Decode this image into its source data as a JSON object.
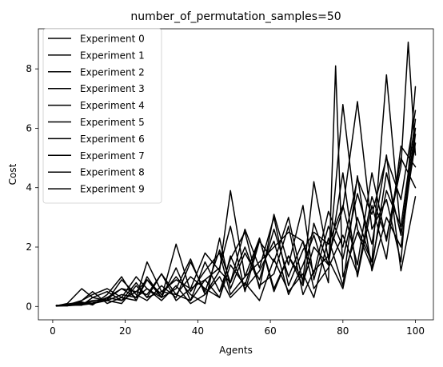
{
  "chart_data": {
    "type": "line",
    "title": "number_of_permutation_samples=50",
    "xlabel": "Agents",
    "ylabel": "Cost",
    "xlim": [
      -3.95,
      104.95
    ],
    "ylim": [
      -0.45,
      9.35
    ],
    "xticks": [
      0,
      20,
      40,
      60,
      80,
      100
    ],
    "yticks": [
      0,
      2,
      4,
      6,
      8
    ],
    "grid": false,
    "legend_position": "top-left",
    "line_color": "#000000",
    "series": [
      {
        "name": "Experiment 0",
        "x": [
          1,
          4,
          8,
          11,
          15,
          19,
          23,
          26,
          30,
          34,
          38,
          42,
          46,
          49,
          53,
          57,
          61,
          65,
          69,
          72,
          76,
          80,
          84,
          88,
          92,
          96,
          100
        ],
        "y": [
          0.02,
          0.05,
          0.1,
          0.2,
          0.25,
          0.6,
          0.3,
          1.5,
          0.5,
          0.9,
          0.6,
          1.8,
          1.2,
          3.9,
          1.0,
          1.5,
          2.0,
          2.5,
          2.2,
          1.1,
          3.2,
          2.0,
          4.3,
          3.1,
          5.0,
          3.6,
          6.6
        ]
      },
      {
        "name": "Experiment 1",
        "x": [
          1,
          4,
          8,
          11,
          15,
          19,
          23,
          26,
          30,
          34,
          38,
          42,
          46,
          49,
          53,
          57,
          61,
          65,
          69,
          72,
          76,
          80,
          84,
          88,
          92,
          96,
          100
        ],
        "y": [
          0.02,
          0.1,
          0.6,
          0.3,
          0.2,
          0.9,
          0.4,
          0.2,
          0.7,
          0.3,
          1.5,
          0.5,
          1.9,
          0.8,
          2.6,
          1.3,
          3.0,
          0.7,
          1.9,
          2.5,
          2.1,
          3.4,
          1.4,
          4.5,
          2.2,
          5.0,
          4.0
        ]
      },
      {
        "name": "Experiment 2",
        "x": [
          1,
          4,
          8,
          11,
          15,
          19,
          23,
          26,
          30,
          34,
          38,
          42,
          46,
          49,
          53,
          57,
          61,
          65,
          69,
          72,
          76,
          80,
          84,
          88,
          92,
          96,
          100
        ],
        "y": [
          0.04,
          0.02,
          0.2,
          0.5,
          0.1,
          0.3,
          1.0,
          0.6,
          0.3,
          1.3,
          0.2,
          0.9,
          1.3,
          2.7,
          0.5,
          2.2,
          1.5,
          3.0,
          0.8,
          2.0,
          1.4,
          6.8,
          2.6,
          1.5,
          7.8,
          2.4,
          5.5
        ]
      },
      {
        "name": "Experiment 3",
        "x": [
          1,
          4,
          8,
          11,
          15,
          19,
          23,
          26,
          30,
          34,
          38,
          42,
          46,
          49,
          53,
          57,
          61,
          65,
          69,
          72,
          76,
          80,
          84,
          88,
          92,
          96,
          100
        ],
        "y": [
          0.02,
          0.05,
          0.04,
          0.3,
          0.5,
          0.2,
          0.8,
          0.3,
          1.1,
          0.4,
          0.2,
          1.5,
          0.5,
          1.6,
          2.5,
          0.6,
          3.1,
          1.4,
          3.4,
          0.9,
          2.7,
          1.6,
          3.8,
          2.1,
          5.1,
          1.2,
          3.7
        ]
      },
      {
        "name": "Experiment 4",
        "x": [
          1,
          4,
          8,
          11,
          15,
          19,
          23,
          26,
          30,
          34,
          38,
          42,
          46,
          49,
          53,
          57,
          61,
          65,
          69,
          72,
          76,
          80,
          84,
          88,
          92,
          96,
          100
        ],
        "y": [
          0.03,
          0.08,
          0.15,
          0.05,
          0.4,
          1.0,
          0.2,
          0.9,
          0.3,
          2.1,
          0.5,
          1.2,
          1.8,
          0.4,
          1.0,
          2.3,
          0.6,
          1.7,
          0.7,
          2.8,
          1.4,
          4.5,
          1.0,
          3.4,
          1.6,
          5.4,
          4.7
        ]
      },
      {
        "name": "Experiment 5",
        "x": [
          1,
          4,
          8,
          11,
          15,
          19,
          23,
          26,
          30,
          34,
          38,
          42,
          46,
          49,
          53,
          57,
          61,
          65,
          69,
          72,
          76,
          80,
          84,
          88,
          92,
          96,
          100
        ],
        "y": [
          0.02,
          0.04,
          0.1,
          0.15,
          0.2,
          0.4,
          0.3,
          0.6,
          0.2,
          0.7,
          0.1,
          0.4,
          1.0,
          0.3,
          0.8,
          0.2,
          1.6,
          0.5,
          1.1,
          0.3,
          2.3,
          0.7,
          4.4,
          1.2,
          3.0,
          2.0,
          5.8
        ]
      },
      {
        "name": "Experiment 6",
        "x": [
          1,
          4,
          8,
          11,
          15,
          19,
          23,
          26,
          30,
          34,
          38,
          42,
          46,
          49,
          53,
          57,
          61,
          65,
          69,
          72,
          76,
          80,
          84,
          88,
          92,
          96,
          100
        ],
        "y": [
          0.01,
          0.03,
          0.05,
          0.1,
          0.3,
          0.2,
          0.5,
          0.4,
          1.1,
          0.2,
          0.6,
          0.9,
          0.3,
          1.4,
          0.7,
          2.3,
          0.5,
          1.7,
          0.9,
          4.2,
          1.6,
          0.6,
          3.0,
          1.5,
          3.9,
          2.7,
          6.3
        ]
      },
      {
        "name": "Experiment 7",
        "x": [
          1,
          4,
          8,
          11,
          15,
          19,
          23,
          26,
          30,
          34,
          38,
          42,
          46,
          49,
          53,
          57,
          61,
          65,
          69,
          72,
          76,
          80,
          84,
          88,
          92,
          96,
          98,
          100
        ],
        "y": [
          0.03,
          0.06,
          0.12,
          0.08,
          0.3,
          0.6,
          0.5,
          0.9,
          0.4,
          1.0,
          0.4,
          0.1,
          2.3,
          0.6,
          1.8,
          0.9,
          2.6,
          1.0,
          2.2,
          0.6,
          1.3,
          2.4,
          1.1,
          3.7,
          2.3,
          4.7,
          8.9,
          5.1
        ]
      },
      {
        "name": "Experiment 8",
        "x": [
          1,
          4,
          8,
          11,
          15,
          19,
          23,
          26,
          30,
          34,
          38,
          42,
          46,
          49,
          53,
          57,
          61,
          65,
          69,
          72,
          76,
          78,
          80,
          84,
          88,
          92,
          96,
          100
        ],
        "y": [
          0.02,
          0.02,
          0.08,
          0.1,
          0.2,
          0.1,
          0.7,
          0.3,
          0.5,
          0.4,
          1.0,
          0.6,
          0.3,
          1.7,
          0.6,
          1.2,
          2.2,
          0.4,
          1.4,
          2.4,
          0.8,
          8.1,
          1.0,
          2.5,
          1.3,
          4.5,
          2.4,
          6.0
        ]
      },
      {
        "name": "Experiment 9",
        "x": [
          1,
          4,
          8,
          11,
          15,
          19,
          23,
          26,
          30,
          34,
          38,
          42,
          46,
          49,
          53,
          57,
          61,
          65,
          69,
          72,
          76,
          80,
          84,
          88,
          92,
          96,
          100
        ],
        "y": [
          0.02,
          0.05,
          0.2,
          0.4,
          0.6,
          0.3,
          0.2,
          1.0,
          0.3,
          0.6,
          1.6,
          0.4,
          1.2,
          0.8,
          2.0,
          0.7,
          1.1,
          2.7,
          0.4,
          1.2,
          1.7,
          3.3,
          6.9,
          2.6,
          3.6,
          1.5,
          7.4
        ]
      }
    ]
  }
}
